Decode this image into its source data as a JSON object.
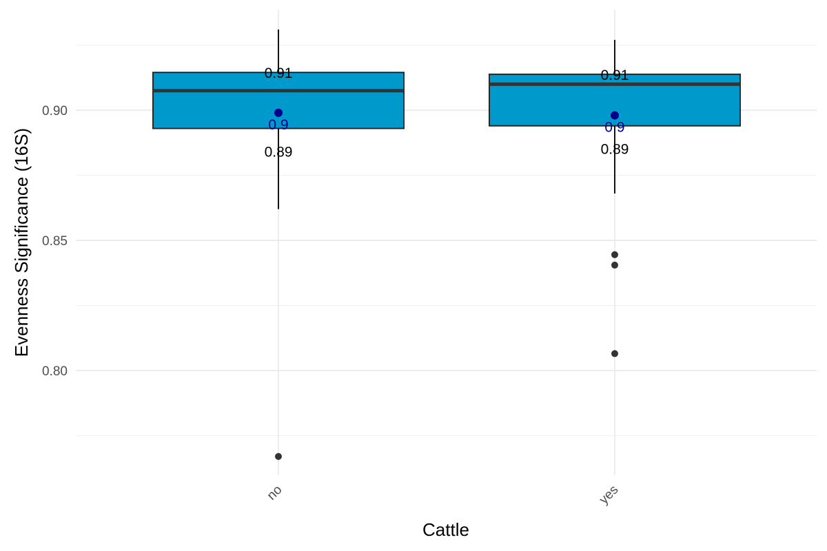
{
  "chart_data": {
    "type": "boxplot",
    "title": "",
    "xlabel": "Cattle",
    "ylabel": "Evenness Significance (16S)",
    "ylim": [
      0.76,
      0.935
    ],
    "y_ticks": [
      0.8,
      0.85,
      0.9
    ],
    "y_tick_labels": [
      "0.80",
      "0.85",
      "0.90"
    ],
    "categories": [
      "no",
      "yes"
    ],
    "box_color": "#0099cc",
    "mean_color": "#00008b",
    "outlier_color": "#333333",
    "boxes": [
      {
        "category": "no",
        "q1": 0.893,
        "median": 0.9075,
        "q3": 0.9145,
        "whisker_low": 0.862,
        "whisker_high": 0.931,
        "mean": 0.899,
        "outliers": [
          0.767
        ],
        "labels": {
          "q3": "0.91",
          "mean": "0.9",
          "q1": "0.89"
        }
      },
      {
        "category": "yes",
        "q1": 0.894,
        "median": 0.91,
        "q3": 0.9138,
        "whisker_low": 0.868,
        "whisker_high": 0.927,
        "mean": 0.898,
        "outliers": [
          0.8445,
          0.8405,
          0.8065
        ],
        "labels": {
          "q3": "0.91",
          "mean": "0.9",
          "q1": "0.89"
        }
      }
    ]
  }
}
